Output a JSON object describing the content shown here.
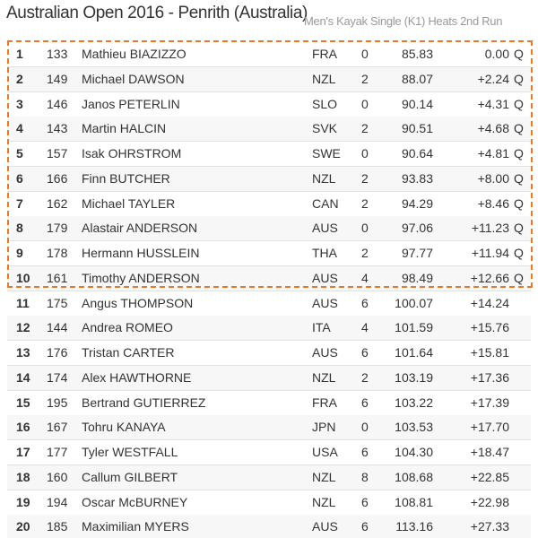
{
  "header": {
    "title": "Australian Open 2016 - Penrith (Australia)",
    "subtitle": "Men's Kayak Single (K1) Heats 2nd Run"
  },
  "table": {
    "rows": [
      [
        "1",
        "133",
        "Mathieu BIAZIZZO",
        "FRA",
        "0",
        "85.83",
        "0.00",
        "Q"
      ],
      [
        "2",
        "149",
        "Michael DAWSON",
        "NZL",
        "2",
        "88.07",
        "+2.24",
        "Q"
      ],
      [
        "3",
        "146",
        "Janos PETERLIN",
        "SLO",
        "0",
        "90.14",
        "+4.31",
        "Q"
      ],
      [
        "4",
        "143",
        "Martin HALCIN",
        "SVK",
        "2",
        "90.51",
        "+4.68",
        "Q"
      ],
      [
        "5",
        "157",
        "Isak OHRSTROM",
        "SWE",
        "0",
        "90.64",
        "+4.81",
        "Q"
      ],
      [
        "6",
        "166",
        "Finn BUTCHER",
        "NZL",
        "2",
        "93.83",
        "+8.00",
        "Q"
      ],
      [
        "7",
        "162",
        "Michael TAYLER",
        "CAN",
        "2",
        "94.29",
        "+8.46",
        "Q"
      ],
      [
        "8",
        "179",
        "Alastair ANDERSON",
        "AUS",
        "0",
        "97.06",
        "+11.23",
        "Q"
      ],
      [
        "9",
        "178",
        "Hermann HUSSLEIN",
        "THA",
        "2",
        "97.77",
        "+11.94",
        "Q"
      ],
      [
        "10",
        "161",
        "Timothy ANDERSON",
        "AUS",
        "4",
        "98.49",
        "+12.66",
        "Q"
      ],
      [
        "11",
        "175",
        "Angus THOMPSON",
        "AUS",
        "6",
        "100.07",
        "+14.24"
      ],
      [
        "12",
        "144",
        "Andrea ROMEO",
        "ITA",
        "4",
        "101.59",
        "+15.76"
      ],
      [
        "13",
        "176",
        "Tristan CARTER",
        "AUS",
        "6",
        "101.64",
        "+15.81"
      ],
      [
        "14",
        "174",
        "Alex HAWTHORNE",
        "NZL",
        "2",
        "103.19",
        "+17.36"
      ],
      [
        "15",
        "195",
        "Bertrand GUTIERREZ",
        "FRA",
        "6",
        "103.22",
        "+17.39"
      ],
      [
        "16",
        "167",
        "Tohru KANAYA",
        "JPN",
        "0",
        "103.53",
        "+17.70"
      ],
      [
        "17",
        "177",
        "Tyler WESTFALL",
        "USA",
        "6",
        "104.30",
        "+18.47"
      ],
      [
        "18",
        "160",
        "Callum GILBERT",
        "NZL",
        "8",
        "108.68",
        "+22.85"
      ],
      [
        "19",
        "194",
        "Oscar McBURNEY",
        "NZL",
        "6",
        "108.81",
        "+22.98"
      ],
      [
        "20",
        "185",
        "Maximilian MYERS",
        "AUS",
        "6",
        "113.16",
        "+27.33"
      ]
    ]
  }
}
